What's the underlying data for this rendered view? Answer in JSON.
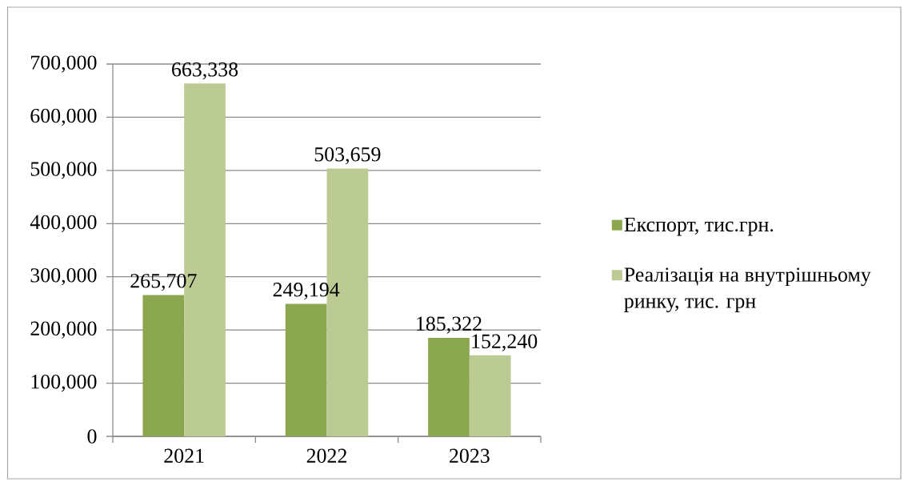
{
  "chart_data": {
    "type": "bar",
    "categories": [
      "2021",
      "2022",
      "2023"
    ],
    "series": [
      {
        "name": "Експорт, тис.грн.",
        "color": "#8aa64e",
        "values": [
          265707,
          249194,
          185322
        ],
        "value_labels": [
          "265,707",
          "249,194",
          "185,322"
        ]
      },
      {
        "name": "Реалізація на внутрішньому ринку, тис. грн",
        "color": "#bccb94",
        "values": [
          663338,
          503659,
          152240
        ],
        "value_labels": [
          "663,338",
          "503,659",
          "152,240"
        ]
      }
    ],
    "ylim": [
      0,
      700000
    ],
    "yticks": [
      0,
      {
        "value": 100000,
        "label": "100,000"
      },
      {
        "value": 200000,
        "label": "200,000"
      },
      {
        "value": 300000,
        "label": "300,000"
      },
      {
        "value": 400000,
        "label": "400,000"
      },
      {
        "value": 500000,
        "label": "500,000"
      },
      {
        "value": 600000,
        "label": "600,000"
      },
      {
        "value": 700000,
        "label": "700,000"
      }
    ],
    "grid": "y",
    "legend": "right"
  }
}
